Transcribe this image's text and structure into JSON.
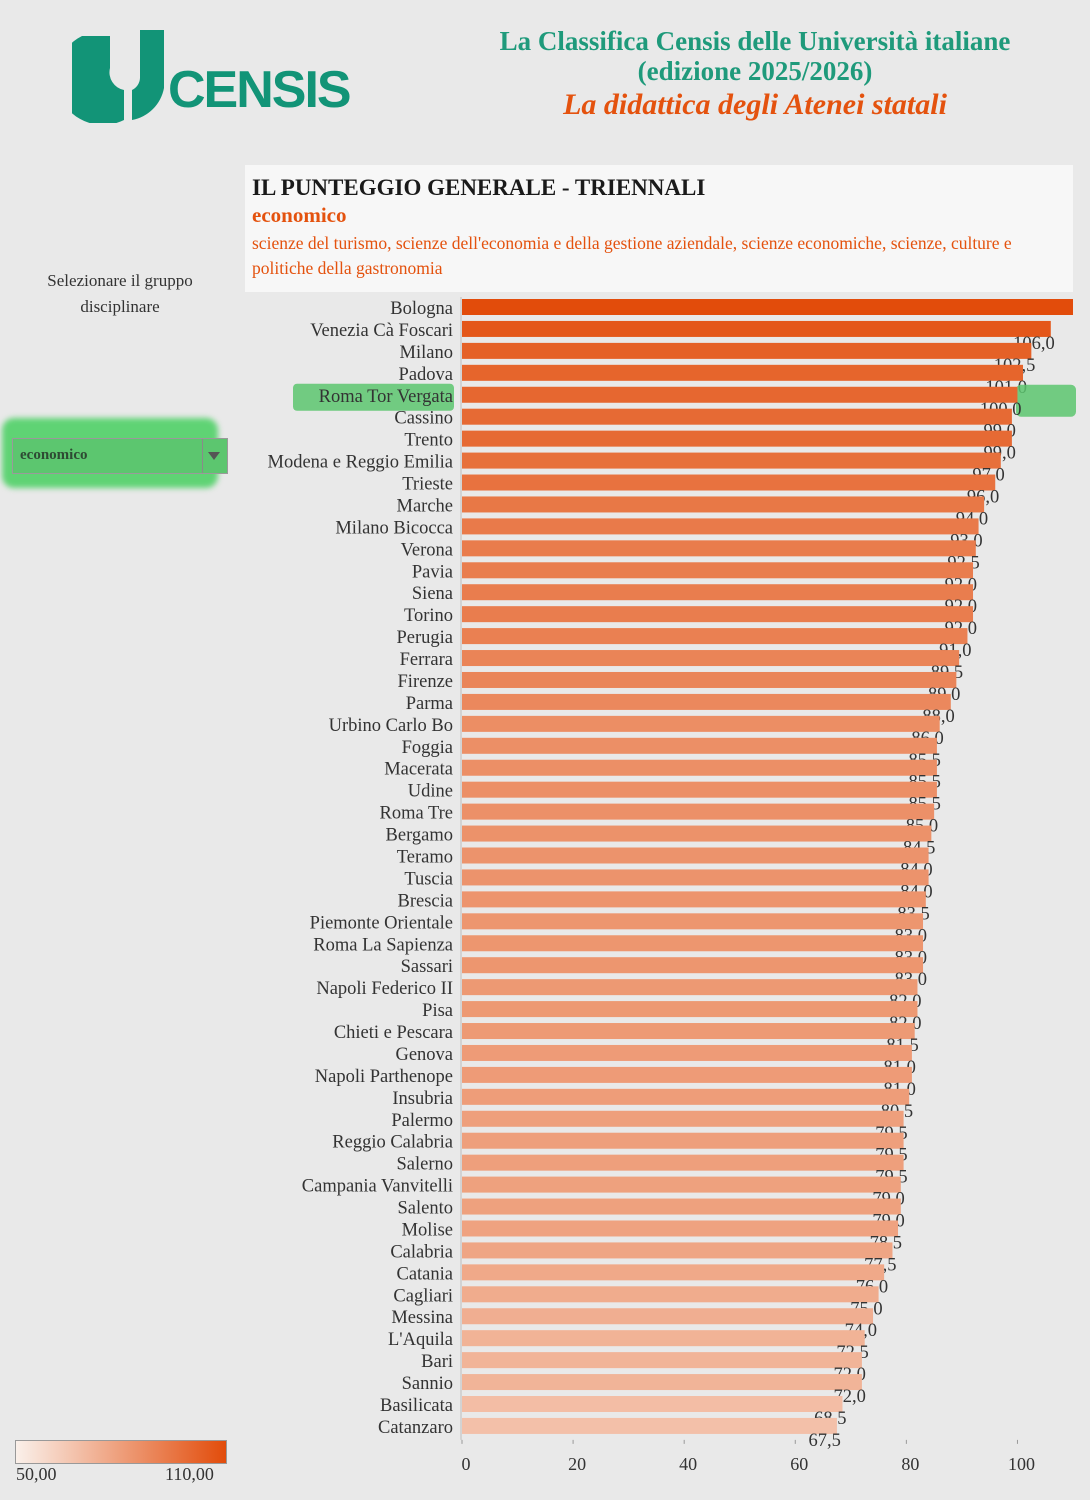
{
  "header": {
    "brand": "CENSIS",
    "title_line1": "La Classifica Censis delle Università italiane",
    "title_line2": "(edizione 2025/2026)",
    "title_line3": "La didattica degli Atenei statali"
  },
  "panel": {
    "title": "IL PUNTEGGIO GENERALE - TRIENNALI",
    "group": "economico",
    "description": "scienze del turismo, scienze dell'economia e della gestione aziendale, scienze economiche, scienze, culture e politiche della gastronomia"
  },
  "selector": {
    "label": "Selezionare il gruppo disciplinare",
    "value": "economico"
  },
  "legend": {
    "min_label": "50,00",
    "max_label": "110,00",
    "color_min": "#faf0ea",
    "color_max": "#e24c0b"
  },
  "colors": {
    "brand_green": "#129477",
    "accent_orange": "#e4520e",
    "highlight_green": "#5cc66f"
  },
  "chart_data": {
    "type": "bar",
    "orientation": "horizontal",
    "highlight": "Roma Tor Vergata",
    "xlim": [
      0,
      110
    ],
    "color_scale": [
      50,
      110
    ],
    "x_ticks": [
      "0",
      "20",
      "40",
      "60",
      "80",
      "100"
    ],
    "categories": [
      "Bologna",
      "Venezia Cà Foscari",
      "Milano",
      "Padova",
      "Roma Tor Vergata",
      "Cassino",
      "Trento",
      "Modena e Reggio Emilia",
      "Trieste",
      "Marche",
      "Milano Bicocca",
      "Verona",
      "Pavia",
      "Siena",
      "Torino",
      "Perugia",
      "Ferrara",
      "Firenze",
      "Parma",
      "Urbino Carlo Bo",
      "Foggia",
      "Macerata",
      "Udine",
      "Roma Tre",
      "Bergamo",
      "Teramo",
      "Tuscia",
      "Brescia",
      "Piemonte Orientale",
      "Roma La Sapienza",
      "Sassari",
      "Napoli Federico II",
      "Pisa",
      "Chieti e Pescara",
      "Genova",
      "Napoli Parthenope",
      "Insubria",
      "Palermo",
      "Reggio Calabria",
      "Salerno",
      "Campania Vanvitelli",
      "Salento",
      "Molise",
      "Calabria",
      "Catania",
      "Cagliari",
      "Messina",
      "L'Aquila",
      "Bari",
      "Sannio",
      "Basilicata",
      "Catanzaro"
    ],
    "values": [
      110,
      106,
      102.5,
      101,
      100,
      99,
      99,
      97,
      96,
      94,
      93,
      92.5,
      92,
      92,
      92,
      91,
      89.5,
      89,
      88,
      86,
      85.5,
      85.5,
      85.5,
      85,
      84.5,
      84,
      84,
      83.5,
      83,
      83,
      83,
      82,
      82,
      81.5,
      81,
      81,
      80.5,
      79.5,
      79.5,
      79.5,
      79,
      79,
      78.5,
      77.5,
      76,
      75,
      74,
      72.5,
      72,
      72,
      68.5,
      67.5
    ],
    "value_labels": [
      "",
      "106,0",
      "102,5",
      "101,0",
      "100,0",
      "99,0",
      "99,0",
      "97,0",
      "96,0",
      "94,0",
      "93,0",
      "92,5",
      "92,0",
      "92,0",
      "92,0",
      "91,0",
      "89,5",
      "89,0",
      "88,0",
      "86,0",
      "85,5",
      "85,5",
      "85,5",
      "85,0",
      "84,5",
      "84,0",
      "84,0",
      "83,5",
      "83,0",
      "83,0",
      "83,0",
      "82,0",
      "82,0",
      "81,5",
      "81,0",
      "81,0",
      "80,5",
      "79,5",
      "79,5",
      "79,5",
      "79,0",
      "79,0",
      "78,5",
      "77,5",
      "76,0",
      "75,0",
      "74,0",
      "72,5",
      "72,0",
      "72,0",
      "68,5",
      "67,5"
    ]
  }
}
